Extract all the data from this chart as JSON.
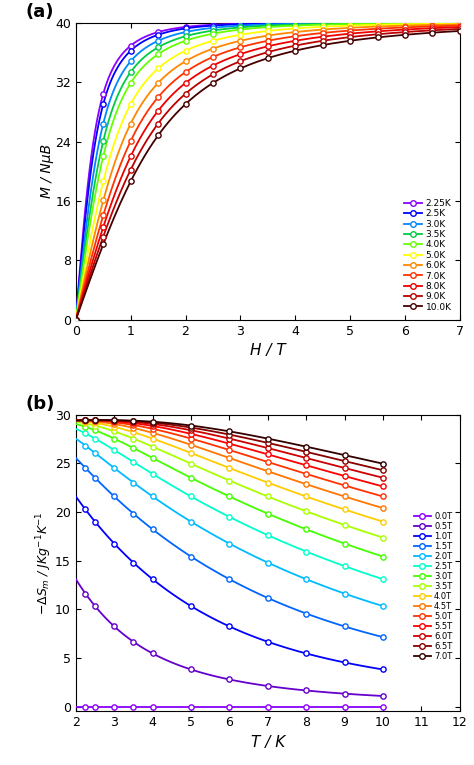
{
  "panel_a": {
    "title": "(a)",
    "xlabel": "H / T",
    "ylabel": "M / NμB",
    "xlim": [
      0,
      7
    ],
    "ylim": [
      0,
      40
    ],
    "xticks": [
      0,
      1,
      2,
      3,
      4,
      5,
      6,
      7
    ],
    "yticks": [
      0,
      8,
      16,
      24,
      32,
      40
    ],
    "temperatures": [
      2.25,
      2.5,
      3.0,
      3.5,
      4.0,
      5.0,
      6.0,
      7.0,
      8.0,
      9.0,
      10.0
    ],
    "colors": [
      "#8b00ff",
      "#0000ff",
      "#0088ff",
      "#00cc44",
      "#66ff00",
      "#ffff00",
      "#ff8800",
      "#ff3300",
      "#ee0000",
      "#bb0000",
      "#440000"
    ],
    "legend_labels": [
      "2.25K",
      "2.5K",
      "3.0K",
      "3.5K",
      "4.0K",
      "5.0K",
      "6.0K",
      "7.0K",
      "8.0K",
      "9.0K",
      "10.0K"
    ],
    "H_points": [
      0,
      0.5,
      1.0,
      1.5,
      2.0,
      2.5,
      3.0,
      3.5,
      4.0,
      4.5,
      5.0,
      5.5,
      6.0,
      6.5,
      7.0
    ],
    "J": 3.5,
    "g": 2.0,
    "Msat": 40.0,
    "x_scale": 3.5
  },
  "panel_b": {
    "title": "(b)",
    "xlabel": "T / K",
    "ylabel": "-ΔS$_m$ / JKg$^{-1}$K$^{-1}$",
    "xlim": [
      2,
      12
    ],
    "ylim": [
      -0.5,
      30
    ],
    "xticks": [
      2,
      3,
      4,
      5,
      6,
      7,
      8,
      9,
      10,
      11,
      12
    ],
    "yticks": [
      0,
      5,
      10,
      15,
      20,
      25,
      30
    ],
    "fields": [
      0.0,
      0.5,
      1.0,
      1.5,
      2.0,
      2.5,
      3.0,
      3.5,
      4.0,
      4.5,
      5.0,
      5.5,
      6.0,
      6.5,
      7.0
    ],
    "colors": [
      "#8b00ff",
      "#6600cc",
      "#0000ff",
      "#0066ff",
      "#00bbff",
      "#00ffcc",
      "#44ff00",
      "#aaff00",
      "#ffcc00",
      "#ff7700",
      "#ff3300",
      "#ff0000",
      "#cc0000",
      "#880000",
      "#330000"
    ],
    "legend_labels": [
      "0.0T",
      "0.5T",
      "1.0T",
      "1.5T",
      "2.0T",
      "2.5T",
      "3.0T",
      "3.5T",
      "4.0T",
      "4.5T",
      "5.0T",
      "5.5T",
      "6.0T",
      "6.5T",
      "7.0T"
    ],
    "T_points": [
      2.25,
      2.5,
      3.0,
      3.5,
      4.0,
      5.0,
      6.0,
      7.0,
      8.0,
      9.0,
      10.0
    ],
    "J": 3.5,
    "g": 2.0,
    "Msat": 40.0,
    "x_scale": 3.5,
    "scale_factor": 4.35
  },
  "figsize": [
    4.74,
    7.65
  ],
  "dpi": 100
}
